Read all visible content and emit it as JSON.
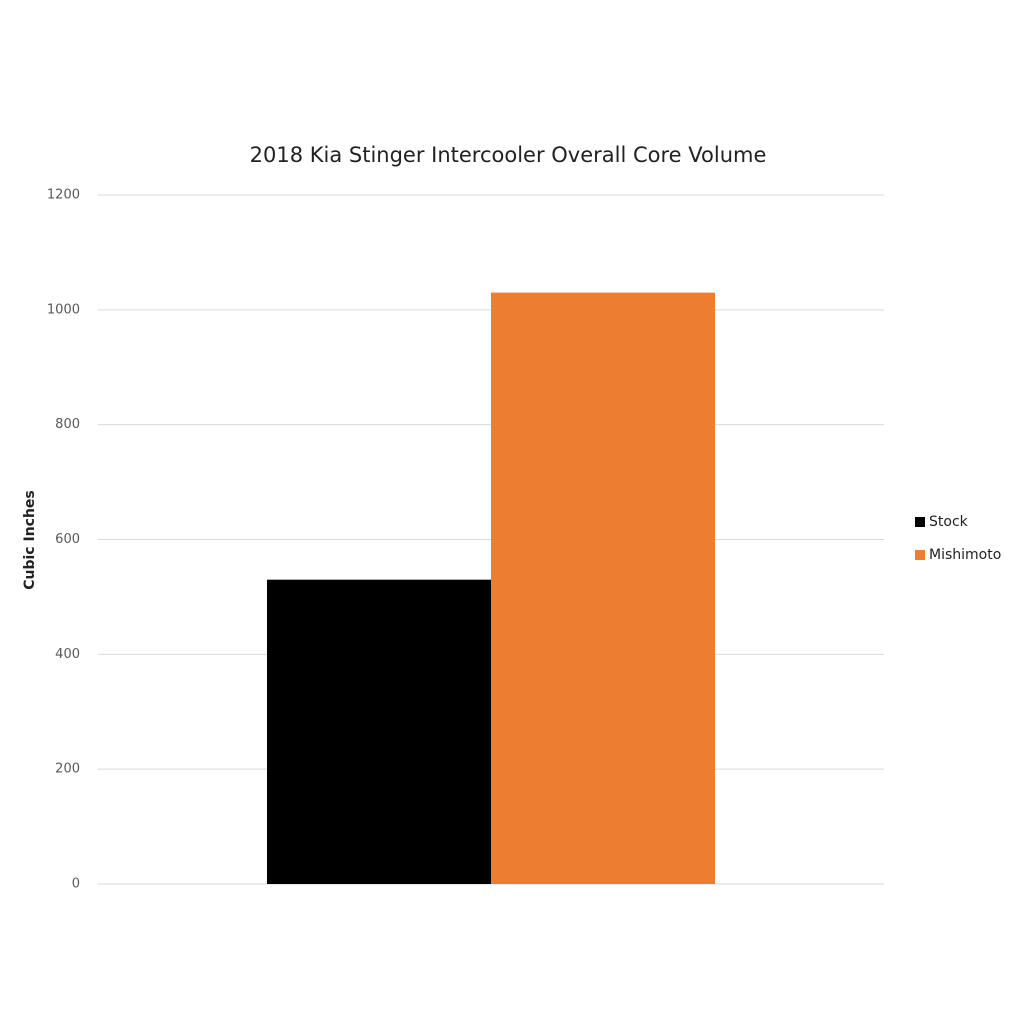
{
  "chart_data": {
    "type": "bar",
    "title": "2018 Kia Stinger Intercooler Overall Core Volume",
    "y_label": "Cubic Inches",
    "categories": [
      null
    ],
    "series": [
      {
        "name": "Stock",
        "color": "#000000",
        "values": [
          530
        ]
      },
      {
        "name": "Mishimoto",
        "color": "#ed7d31",
        "values": [
          1030
        ]
      }
    ],
    "ylim": [
      0,
      1200
    ],
    "yticks": [
      0,
      200,
      400,
      600,
      800,
      1000,
      1200
    ],
    "grid": true,
    "legend": "right"
  }
}
